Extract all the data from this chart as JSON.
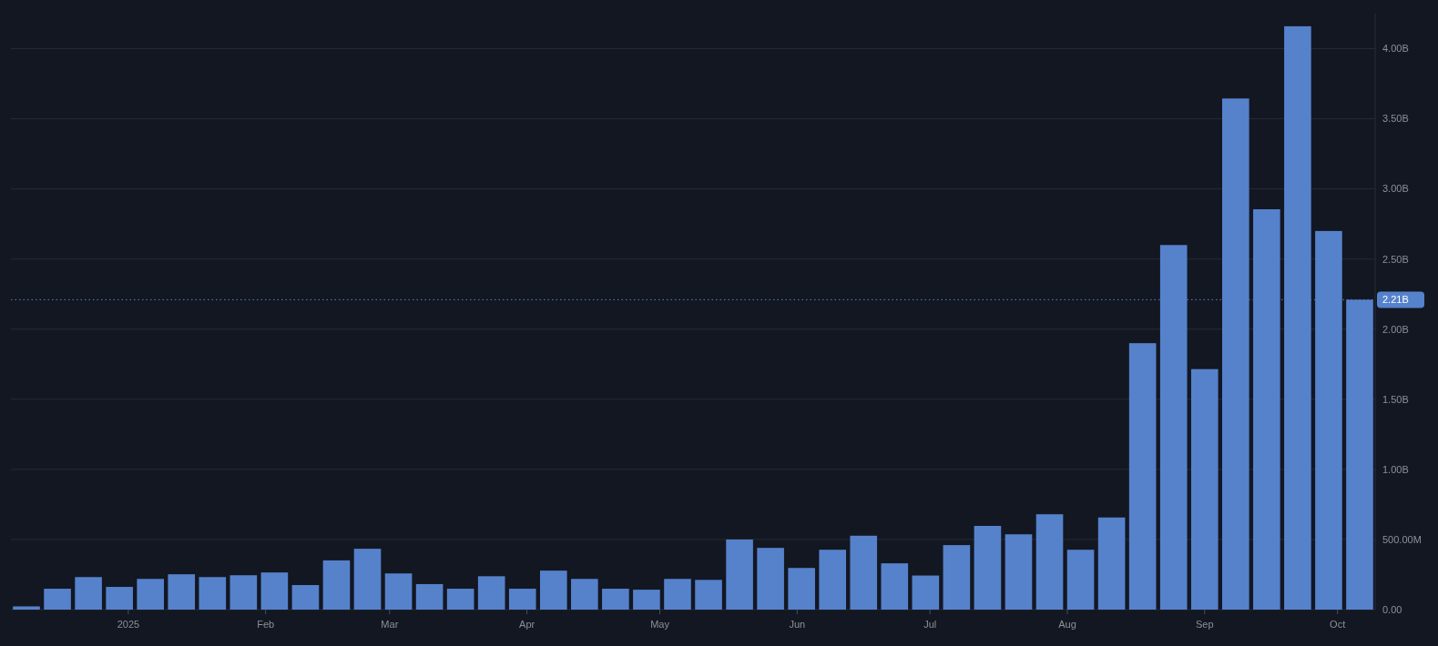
{
  "chart_data": {
    "type": "bar",
    "x": [
      "2024-12-09",
      "2024-12-16",
      "2024-12-23",
      "2024-12-30",
      "2025-01-06",
      "2025-01-13",
      "2025-01-20",
      "2025-01-27",
      "2025-02-03",
      "2025-02-10",
      "2025-02-17",
      "2025-02-24",
      "2025-03-03",
      "2025-03-10",
      "2025-03-17",
      "2025-03-24",
      "2025-03-31",
      "2025-04-07",
      "2025-04-14",
      "2025-04-21",
      "2025-04-28",
      "2025-05-05",
      "2025-05-12",
      "2025-05-19",
      "2025-05-26",
      "2025-06-02",
      "2025-06-09",
      "2025-06-16",
      "2025-06-23",
      "2025-06-30",
      "2025-07-07",
      "2025-07-14",
      "2025-07-21",
      "2025-07-28",
      "2025-08-04",
      "2025-08-11",
      "2025-08-18",
      "2025-08-25",
      "2025-09-01",
      "2025-09-08",
      "2025-09-15",
      "2025-09-22",
      "2025-09-29",
      "2025-10-06"
    ],
    "values": [
      23000000,
      149000000,
      232000000,
      162000000,
      219000000,
      252000000,
      232000000,
      245000000,
      265000000,
      175000000,
      351000000,
      434000000,
      258000000,
      182000000,
      149000000,
      238000000,
      149000000,
      278000000,
      219000000,
      149000000,
      142000000,
      219000000,
      212000000,
      500000000,
      440000000,
      297000000,
      427000000,
      527000000,
      330000000,
      243000000,
      460000000,
      597000000,
      537000000,
      680000000,
      427000000,
      657000000,
      1900000000,
      2600000000,
      1715000000,
      3645000000,
      2855000000,
      4160000000,
      2700000000,
      2210000000
    ],
    "color": "#5682cc",
    "xlim": [
      "2024-12-05T12:00",
      "2025-10-09T12:00"
    ],
    "xticks": [
      {
        "value": "2025-01-01",
        "label": "2025"
      },
      {
        "value": "2025-02-01",
        "label": "Feb"
      },
      {
        "value": "2025-03-01",
        "label": "Mar"
      },
      {
        "value": "2025-04-01",
        "label": "Apr"
      },
      {
        "value": "2025-05-01",
        "label": "May"
      },
      {
        "value": "2025-06-01",
        "label": "Jun"
      },
      {
        "value": "2025-07-01",
        "label": "Jul"
      },
      {
        "value": "2025-08-01",
        "label": "Aug"
      },
      {
        "value": "2025-09-01",
        "label": "Sep"
      },
      {
        "value": "2025-10-01",
        "label": "Oct"
      }
    ],
    "ylim": [
      0,
      4250000000
    ],
    "yticks": [
      {
        "value": 0,
        "label": "0.00"
      },
      {
        "value": 500000000,
        "label": "500.00M"
      },
      {
        "value": 1000000000,
        "label": "1.00B"
      },
      {
        "value": 1500000000,
        "label": "1.50B"
      },
      {
        "value": 2000000000,
        "label": "2.00B"
      },
      {
        "value": 2500000000,
        "label": "2.50B"
      },
      {
        "value": 3000000000,
        "label": "3.00B"
      },
      {
        "value": 3500000000,
        "label": "3.50B"
      },
      {
        "value": 4000000000,
        "label": "4.00B"
      }
    ],
    "grid": "y",
    "ref_lines": [
      {
        "axis": "y",
        "value": 2210000000,
        "label": "2.21B",
        "color": "#5682cc",
        "line_style": "dotted"
      }
    ]
  }
}
